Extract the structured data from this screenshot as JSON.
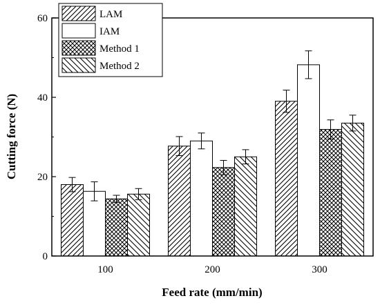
{
  "chart_data": {
    "type": "bar",
    "xlabel": "Feed rate (mm/min)",
    "ylabel": "Cutting force (N)",
    "categories": [
      "100",
      "200",
      "300"
    ],
    "ylim": [
      0,
      60
    ],
    "yticks": [
      0,
      20,
      40,
      60
    ],
    "grid": false,
    "legend_position": "top-left",
    "series": [
      {
        "name": "LAM",
        "pattern": "diagonal-lines",
        "values": [
          18.0,
          27.7,
          39.0
        ],
        "errors": [
          1.8,
          2.4,
          2.8
        ]
      },
      {
        "name": "IAM",
        "pattern": "blank",
        "values": [
          16.3,
          29.0,
          48.2
        ],
        "errors": [
          2.4,
          2.0,
          3.5
        ]
      },
      {
        "name": "Method 1",
        "pattern": "cross-hatch",
        "values": [
          14.4,
          22.3,
          31.9
        ],
        "errors": [
          0.9,
          1.8,
          2.4
        ]
      },
      {
        "name": "Method 2",
        "pattern": "back-diagonal-lines",
        "values": [
          15.6,
          25.0,
          33.5
        ],
        "errors": [
          1.4,
          1.8,
          2.0
        ]
      }
    ]
  }
}
